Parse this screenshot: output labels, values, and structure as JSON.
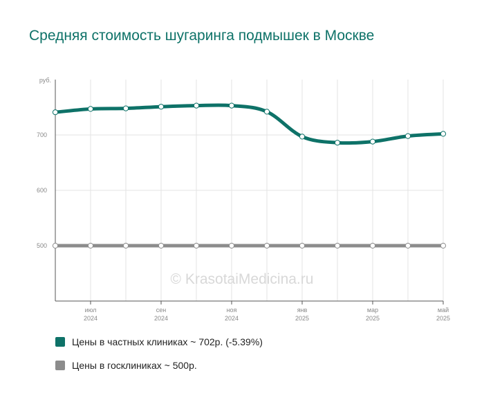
{
  "title": "Средняя стоимость шугаринга подмышек в Москве",
  "watermark": "© KrasotaiMedicina.ru",
  "chart_data": {
    "type": "line",
    "ylabel": "руб.",
    "ylim": [
      400,
      800
    ],
    "yticks": [
      500,
      600,
      700
    ],
    "grid": true,
    "x_labels": [
      {
        "index": 1,
        "month": "июл",
        "year": "2024"
      },
      {
        "index": 3,
        "month": "сен",
        "year": "2024"
      },
      {
        "index": 5,
        "month": "ноя",
        "year": "2024"
      },
      {
        "index": 7,
        "month": "янв",
        "year": "2025"
      },
      {
        "index": 9,
        "month": "мар",
        "year": "2025"
      },
      {
        "index": 11,
        "month": "май",
        "year": "2025"
      }
    ],
    "series": [
      {
        "name": "Цены в частных клиниках",
        "color": "#0e7268",
        "values": [
          741,
          747,
          748,
          751,
          753,
          753,
          742,
          697,
          686,
          688,
          698,
          702
        ]
      },
      {
        "name": "Цены в госклиниках",
        "color": "#8c8c8c",
        "values": [
          500,
          500,
          500,
          500,
          500,
          500,
          500,
          500,
          500,
          500,
          500,
          500
        ]
      }
    ]
  },
  "legend": [
    {
      "label": "Цены в частных клиниках ~ 702р. (-5.39%)",
      "color": "#0e7268"
    },
    {
      "label": "Цены в госклиниках ~ 500р.",
      "color": "#8c8c8c"
    }
  ]
}
